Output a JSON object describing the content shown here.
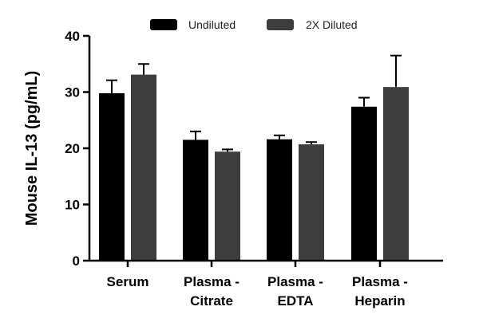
{
  "chart_data": {
    "type": "bar",
    "title": "",
    "xlabel": "",
    "ylabel": "Mouse IL-13 (pg/mL)",
    "ylim": [
      0,
      40
    ],
    "yticks": [
      0,
      10,
      20,
      30,
      40
    ],
    "categories": [
      [
        "Serum"
      ],
      [
        "Plasma -",
        "Citrate"
      ],
      [
        "Plasma -",
        "EDTA"
      ],
      [
        "Plasma -",
        "Heparin"
      ]
    ],
    "series": [
      {
        "name": "Undiluted",
        "color": "#000000",
        "values": [
          29.8,
          21.5,
          21.6,
          27.4
        ],
        "errors": [
          2.3,
          1.5,
          0.7,
          1.6
        ]
      },
      {
        "name": "2X Diluted",
        "color": "#3d3d3d",
        "values": [
          33.1,
          19.4,
          20.7,
          30.9
        ],
        "errors": [
          1.9,
          0.4,
          0.4,
          5.6
        ]
      }
    ],
    "legend": "top"
  }
}
